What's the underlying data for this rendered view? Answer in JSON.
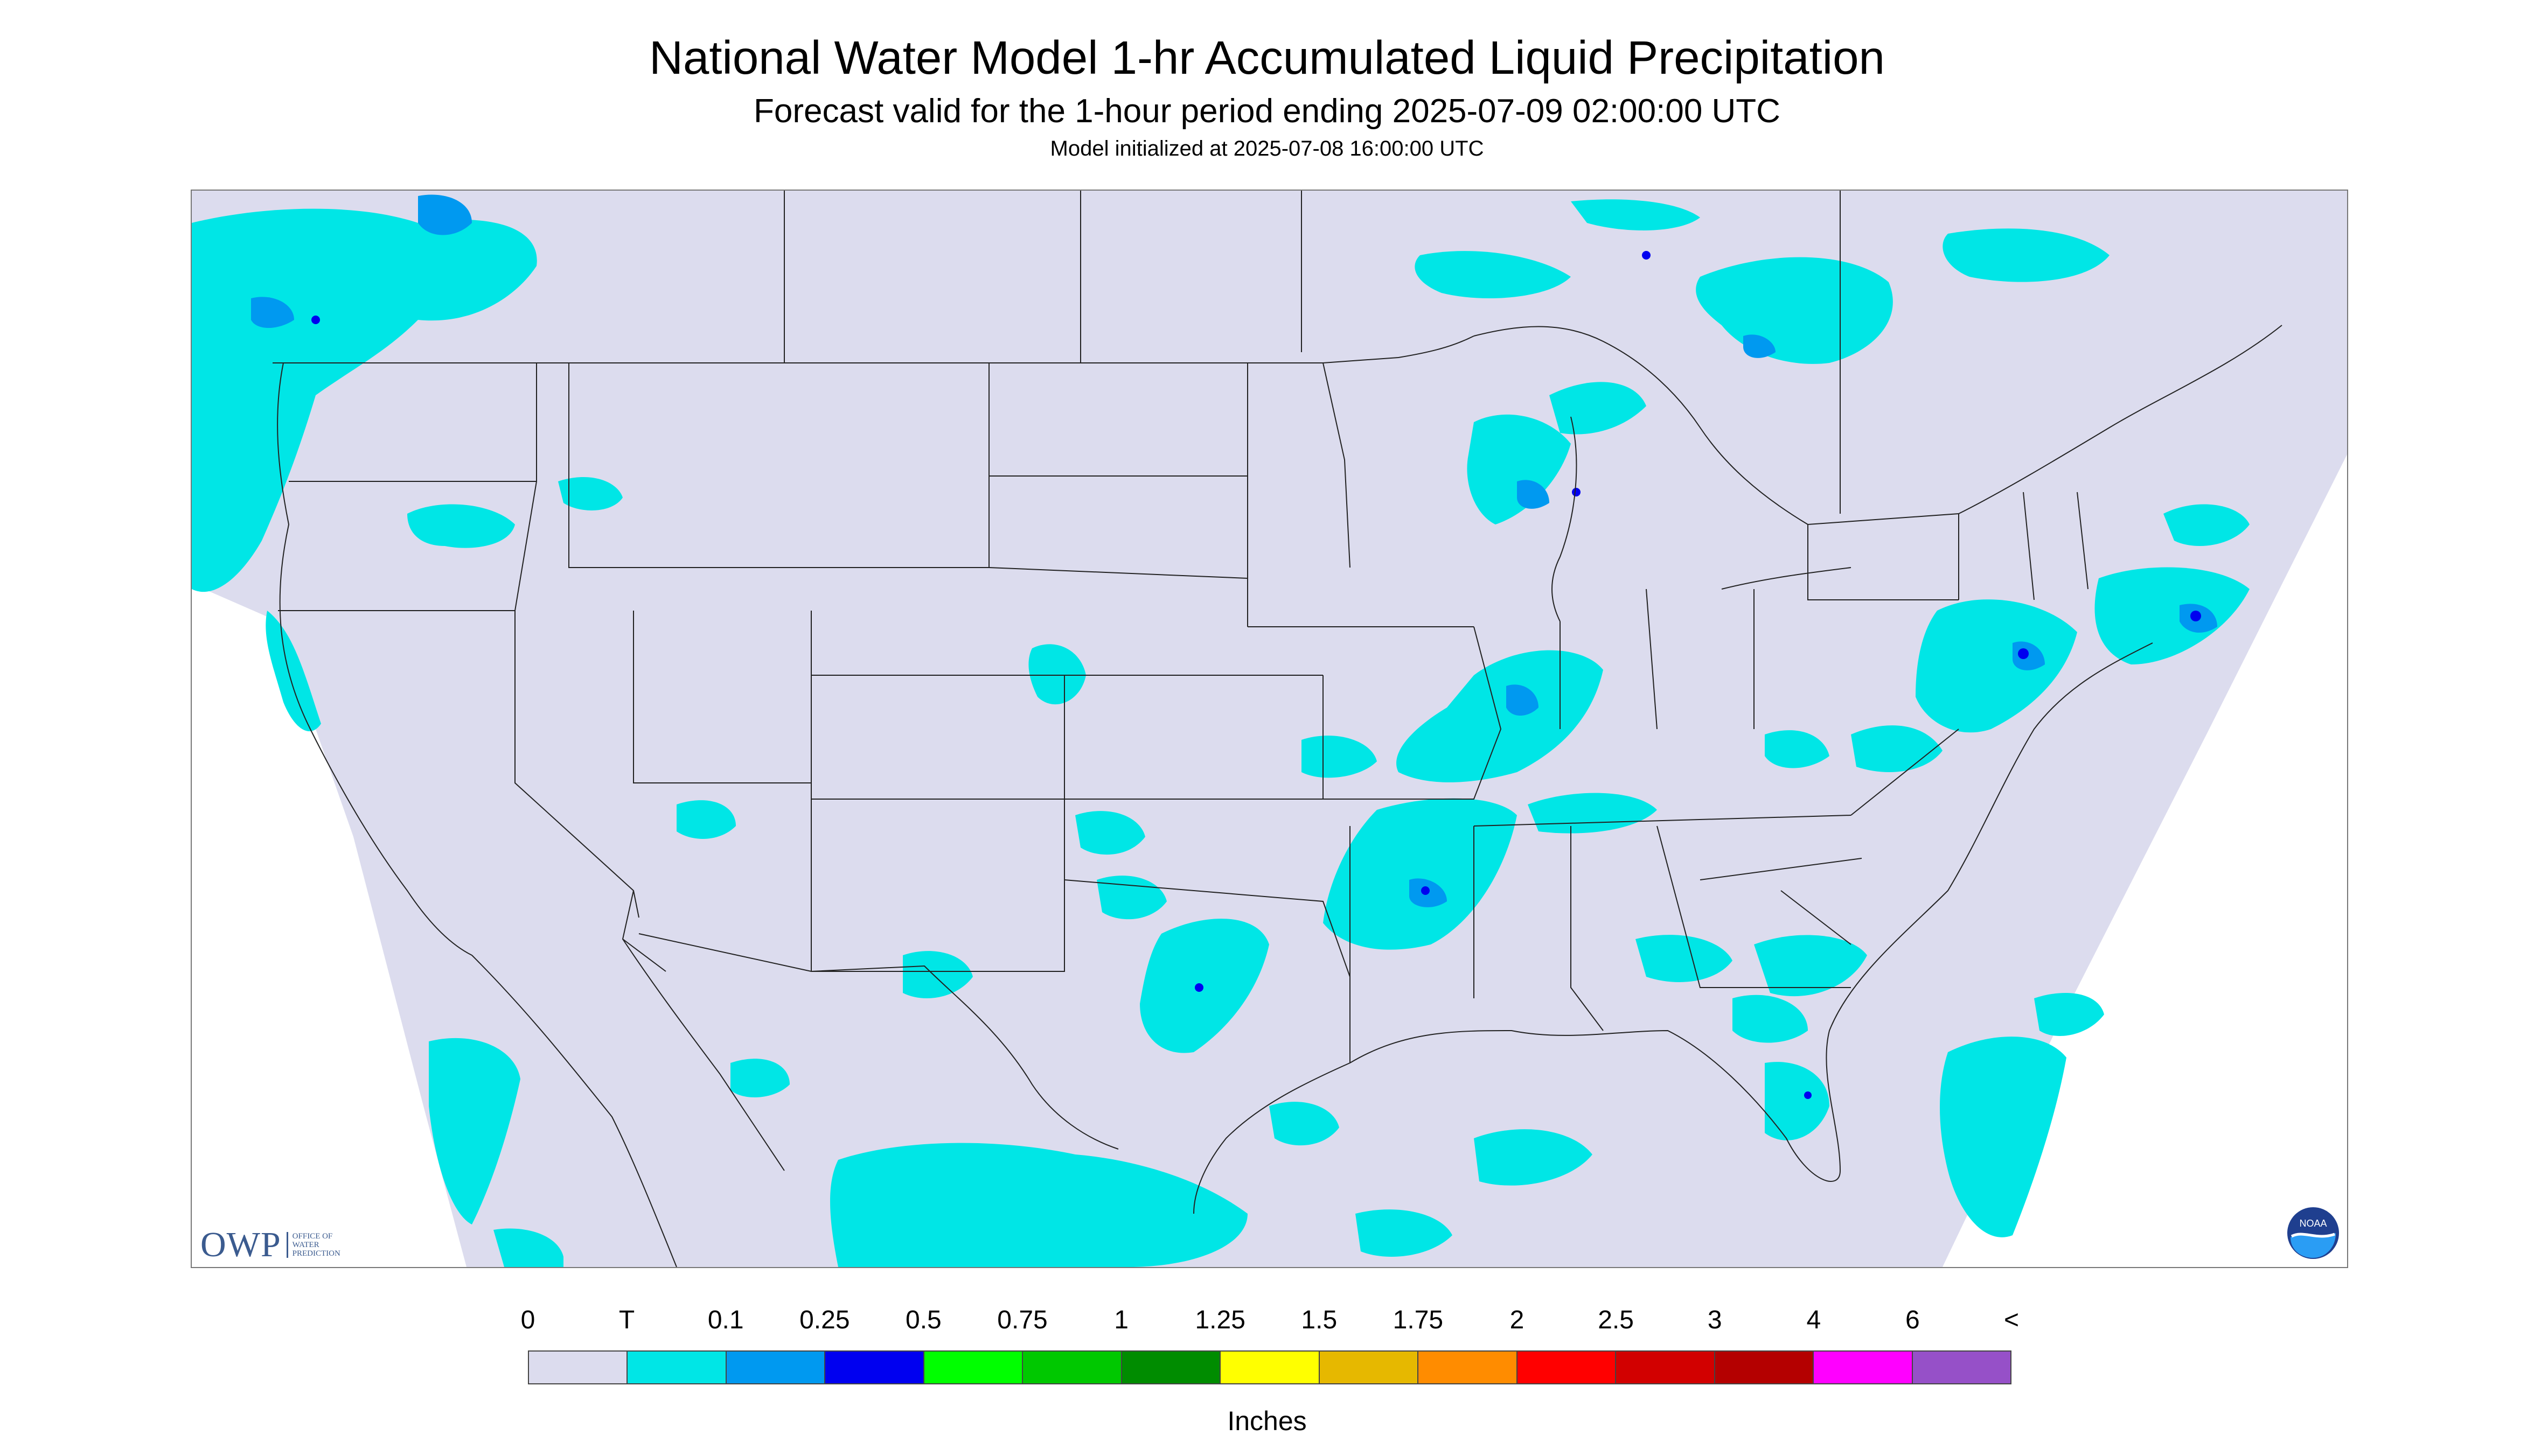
{
  "header": {
    "title": "National Water Model 1-hr Accumulated Liquid Precipitation",
    "subtitle": "Forecast valid for the 1-hour period ending 2025-07-09 02:00:00 UTC",
    "init": "Model initialized at 2025-07-08 16:00:00 UTC"
  },
  "logos": {
    "owp_mark": "OWP",
    "owp_text": [
      "OFFICE OF",
      "WATER",
      "PREDICTION"
    ],
    "noaa_text": "NOAA"
  },
  "map": {
    "background_color": "#dcdcee",
    "outside_domain_color": "#ffffff",
    "boundary_color": "#222222"
  },
  "legend": {
    "units": "Inches",
    "ticks": [
      "0",
      "T",
      "0.1",
      "0.25",
      "0.5",
      "0.75",
      "1",
      "1.25",
      "1.5",
      "1.75",
      "2",
      "2.5",
      "3",
      "4",
      "6",
      "<"
    ],
    "colors": [
      "#dcdcee",
      "#00e6e6",
      "#0099f0",
      "#0000f0",
      "#00ff00",
      "#00c800",
      "#008c00",
      "#ffff00",
      "#e6b800",
      "#ff8c00",
      "#ff0000",
      "#d20000",
      "#b40000",
      "#ff00ff",
      "#9650c8"
    ]
  }
}
